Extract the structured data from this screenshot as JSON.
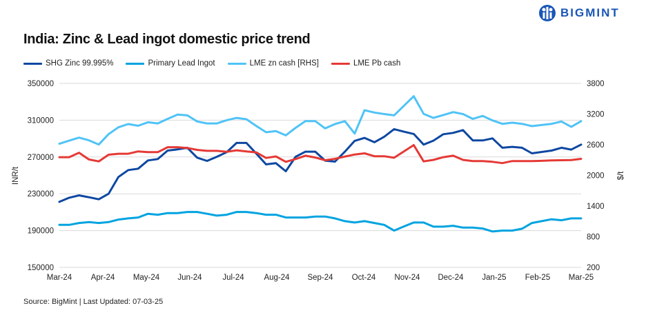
{
  "brand": {
    "name": "BIGMINT",
    "color": "#1a56b8"
  },
  "source": "Source: BigMint | Last Updated: 07-03-25",
  "chart_data": {
    "type": "line",
    "title": "India: Zinc & Lead ingot domestic price trend",
    "x_tick_labels": [
      "Mar-24",
      "Apr-24",
      "May-24",
      "Jun-24",
      "Jul-24",
      "Aug-24",
      "Sep-24",
      "Oct-24",
      "Nov-24",
      "Dec-24",
      "Jan-25",
      "Feb-25",
      "Mar-25"
    ],
    "ylabel": "INR/t",
    "y2label": "$/t",
    "ylim": [
      150000,
      350000
    ],
    "y_ticks": [
      150000,
      190000,
      230000,
      270000,
      310000,
      350000
    ],
    "y2lim": [
      200,
      3800
    ],
    "y2_ticks": [
      200,
      800,
      1400,
      2000,
      2600,
      3200,
      3800
    ],
    "grid": true,
    "legend_position": "top",
    "series": [
      {
        "name": "SHG Zinc 99.995%",
        "axis": "left",
        "color": "#0d47a1",
        "values": [
          221250,
          225750,
          228250,
          226250,
          224000,
          230000,
          248250,
          255750,
          257250,
          266250,
          267750,
          277000,
          278250,
          280000,
          269250,
          265750,
          270250,
          275250,
          285250,
          285250,
          273750,
          262000,
          263250,
          254500,
          270250,
          275750,
          275750,
          266000,
          265000,
          275750,
          287500,
          290750,
          286000,
          292000,
          300250,
          297500,
          295000,
          283500,
          287750,
          294750,
          296250,
          299250,
          288000,
          288000,
          290250,
          280000,
          281000,
          280000,
          274000,
          275500,
          277000,
          280000,
          278000,
          283500
        ]
      },
      {
        "name": "Primary Lead Ingot",
        "axis": "left",
        "color": "#00a3e0",
        "values": [
          196250,
          196250,
          198250,
          199250,
          198250,
          199250,
          202000,
          203250,
          204250,
          208250,
          207250,
          209000,
          209000,
          210250,
          210250,
          208250,
          206250,
          207250,
          210250,
          210250,
          209000,
          207250,
          207250,
          204250,
          204250,
          204250,
          205250,
          205250,
          203250,
          200250,
          198750,
          200250,
          198250,
          196250,
          190000,
          194500,
          198750,
          198750,
          194250,
          194250,
          195250,
          193250,
          193250,
          192250,
          189000,
          190000,
          190000,
          192000,
          198250,
          200250,
          202250,
          201250,
          203250,
          203250
        ]
      },
      {
        "name": "LME zn cash [RHS]",
        "axis": "right",
        "color": "#4fc3f7",
        "values": [
          2619,
          2679,
          2739,
          2686,
          2604,
          2806,
          2941,
          3005,
          2971,
          3039,
          3016,
          3106,
          3189,
          3174,
          3054,
          3016,
          3016,
          3080,
          3125,
          3099,
          2968,
          2844,
          2866,
          2784,
          2930,
          3061,
          3061,
          2919,
          3005,
          3061,
          2818,
          3275,
          3230,
          3200,
          3174,
          3361,
          3549,
          3204,
          3125,
          3181,
          3238,
          3200,
          3106,
          3163,
          3076,
          3009,
          3031,
          3009,
          2964,
          2986,
          3009,
          3054,
          2949,
          3061
        ]
      },
      {
        "name": "LME Pb cash",
        "axis": "right",
        "color": "#e53935",
        "values": [
          2356,
          2356,
          2443,
          2311,
          2274,
          2405,
          2424,
          2424,
          2469,
          2454,
          2454,
          2551,
          2551,
          2536,
          2499,
          2480,
          2480,
          2461,
          2491,
          2469,
          2450,
          2341,
          2371,
          2266,
          2319,
          2386,
          2349,
          2296,
          2323,
          2368,
          2409,
          2431,
          2375,
          2375,
          2345,
          2469,
          2593,
          2274,
          2304,
          2356,
          2386,
          2304,
          2281,
          2281,
          2266,
          2240,
          2281,
          2281,
          2281,
          2285,
          2293,
          2296,
          2300,
          2323
        ]
      }
    ]
  }
}
